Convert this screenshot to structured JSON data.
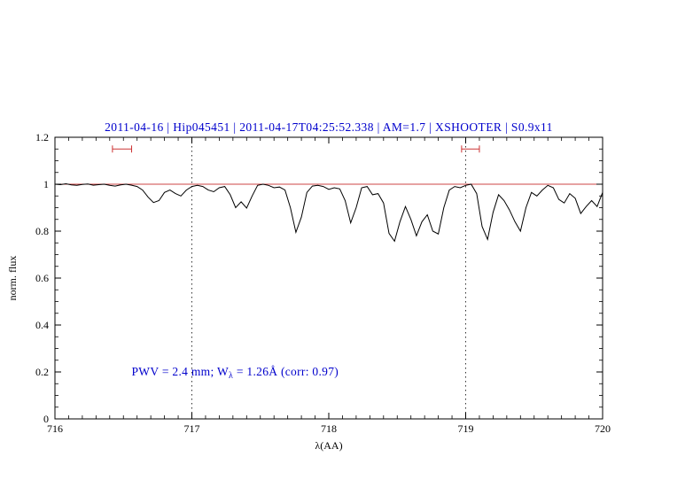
{
  "chart_data": {
    "type": "line",
    "title": "2011-04-16 | Hip045451 | 2011-04-17T04:25:52.338 | AM=1.7 | XSHOOTER | S0.9x11",
    "xlabel": "λ(AA)",
    "ylabel": "norm. flux",
    "xlim": [
      716,
      720
    ],
    "ylim": [
      0,
      1.2
    ],
    "xticks": [
      "716",
      "717",
      "718",
      "719",
      "720"
    ],
    "yticks": [
      "0",
      "0.2",
      "0.4",
      "0.6",
      "0.8",
      "1",
      "1.2"
    ],
    "grid": false,
    "legend": "none",
    "vlines_dotted": [
      717,
      719
    ],
    "continuum_level": 1.0,
    "equiv_width_markers": [
      {
        "x1": 716.42,
        "x2": 716.56,
        "y": 1.15
      },
      {
        "x1": 718.97,
        "x2": 719.1,
        "y": 1.15
      }
    ],
    "annotation": {
      "prefix": "PWV = 2.4 mm; W",
      "sub": "λ",
      "suffix": " = 1.26Å (corr: 0.97)",
      "x": 716.56,
      "y": 0.185
    },
    "colors": {
      "title_text": "#0000cc",
      "annotation_text": "#0000cc",
      "spectrum_line": "#000000",
      "continuum_line": "#cc4444",
      "marker": "#cc3333",
      "axis": "#000000"
    },
    "series": [
      {
        "name": "normalized spectrum",
        "x": [
          716.0,
          716.04,
          716.08,
          716.12,
          716.16,
          716.2,
          716.24,
          716.28,
          716.32,
          716.36,
          716.4,
          716.44,
          716.48,
          716.52,
          716.56,
          716.6,
          716.64,
          716.68,
          716.72,
          716.76,
          716.8,
          716.84,
          716.88,
          716.92,
          716.96,
          717.0,
          717.04,
          717.08,
          717.12,
          717.16,
          717.2,
          717.24,
          717.28,
          717.32,
          717.36,
          717.4,
          717.44,
          717.48,
          717.52,
          717.56,
          717.6,
          717.64,
          717.68,
          717.72,
          717.76,
          717.8,
          717.84,
          717.88,
          717.92,
          717.96,
          718.0,
          718.04,
          718.08,
          718.12,
          718.16,
          718.2,
          718.24,
          718.28,
          718.32,
          718.36,
          718.4,
          718.44,
          718.48,
          718.52,
          718.56,
          718.6,
          718.64,
          718.68,
          718.72,
          718.76,
          718.8,
          718.84,
          718.88,
          718.92,
          718.96,
          719.0,
          719.04,
          719.08,
          719.12,
          719.16,
          719.2,
          719.24,
          719.28,
          719.32,
          719.36,
          719.4,
          719.44,
          719.48,
          719.52,
          719.56,
          719.6,
          719.64,
          719.68,
          719.72,
          719.76,
          719.8,
          719.84,
          719.88,
          719.92,
          719.96,
          720.0
        ],
        "y": [
          1.0,
          0.998,
          1.002,
          0.997,
          0.995,
          0.999,
          1.001,
          0.996,
          0.998,
          1.0,
          0.995,
          0.992,
          0.997,
          1.0,
          0.996,
          0.99,
          0.975,
          0.945,
          0.922,
          0.93,
          0.965,
          0.975,
          0.96,
          0.95,
          0.975,
          0.99,
          0.995,
          0.99,
          0.975,
          0.968,
          0.985,
          0.99,
          0.955,
          0.9,
          0.925,
          0.898,
          0.95,
          0.995,
          1.0,
          0.995,
          0.985,
          0.988,
          0.975,
          0.9,
          0.795,
          0.86,
          0.965,
          0.992,
          0.995,
          0.99,
          0.978,
          0.985,
          0.98,
          0.93,
          0.835,
          0.9,
          0.985,
          0.99,
          0.955,
          0.96,
          0.92,
          0.79,
          0.757,
          0.84,
          0.905,
          0.85,
          0.78,
          0.84,
          0.87,
          0.8,
          0.788,
          0.9,
          0.975,
          0.99,
          0.985,
          0.995,
          1.0,
          0.96,
          0.82,
          0.765,
          0.88,
          0.955,
          0.93,
          0.89,
          0.84,
          0.8,
          0.9,
          0.965,
          0.95,
          0.975,
          0.995,
          0.985,
          0.935,
          0.92,
          0.96,
          0.94,
          0.875,
          0.905,
          0.93,
          0.905,
          0.965
        ]
      }
    ]
  }
}
